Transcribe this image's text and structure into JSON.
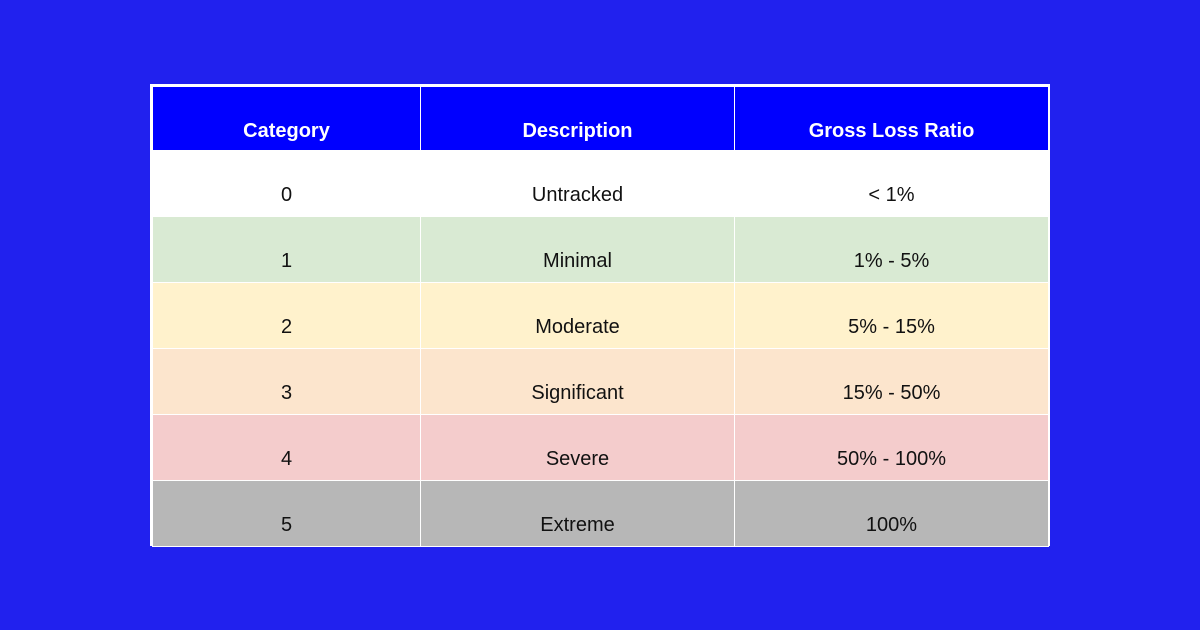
{
  "table": {
    "headers": [
      "Category",
      "Description",
      "Gross Loss Ratio"
    ],
    "rows": [
      {
        "category": "0",
        "description": "Untracked",
        "ratio": "< 1%",
        "color": "#ffffff"
      },
      {
        "category": "1",
        "description": "Minimal",
        "ratio": "1% - 5%",
        "color": "#d9ead3"
      },
      {
        "category": "2",
        "description": "Moderate",
        "ratio": "5% - 15%",
        "color": "#fff2cc"
      },
      {
        "category": "3",
        "description": "Significant",
        "ratio": "15% - 50%",
        "color": "#fce5cd"
      },
      {
        "category": "4",
        "description": "Severe",
        "ratio": "50% - 100%",
        "color": "#f4cccc"
      },
      {
        "category": "5",
        "description": "Extreme",
        "ratio": "100%",
        "color": "#b7b7b7"
      }
    ],
    "header_color": "#0000ff",
    "background_color": "#2121ee"
  }
}
